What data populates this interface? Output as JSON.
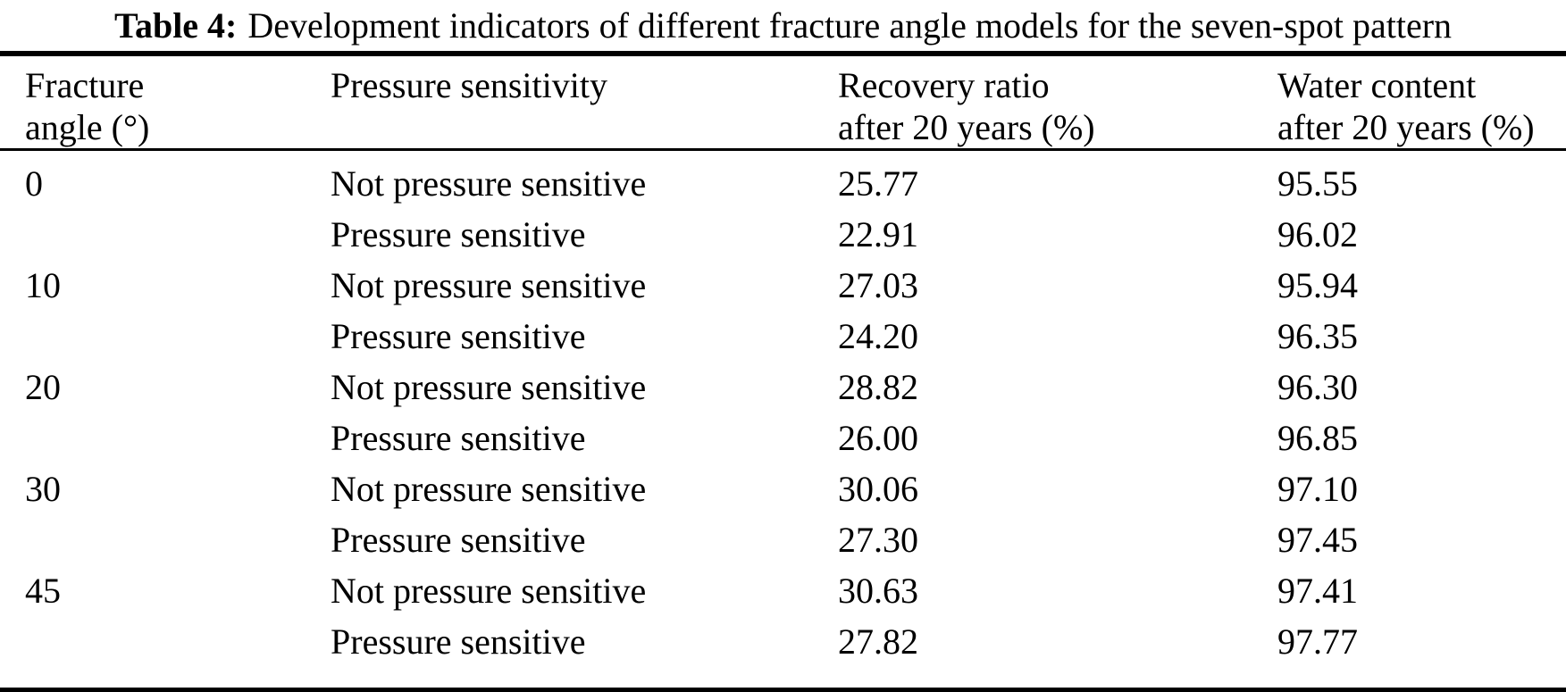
{
  "caption": {
    "label": "Table 4:",
    "text": "Development indicators of different fracture angle models for the seven-spot pattern"
  },
  "table": {
    "headers": {
      "angle": {
        "line1": "Fracture",
        "line2": "angle (°)"
      },
      "sensitivity": {
        "line1": "Pressure sensitivity",
        "line2": ""
      },
      "recovery": {
        "line1": "Recovery ratio",
        "line2": "after 20 years (%)"
      },
      "water": {
        "line1": "Water content",
        "line2": "after 20 years (%)"
      }
    },
    "rows": [
      {
        "angle": "0",
        "sensitivity": "Not pressure sensitive",
        "recovery": "25.77",
        "water": "95.55"
      },
      {
        "angle": "",
        "sensitivity": "Pressure sensitive",
        "recovery": "22.91",
        "water": "96.02"
      },
      {
        "angle": "10",
        "sensitivity": "Not pressure sensitive",
        "recovery": "27.03",
        "water": "95.94"
      },
      {
        "angle": "",
        "sensitivity": "Pressure sensitive",
        "recovery": "24.20",
        "water": "96.35"
      },
      {
        "angle": "20",
        "sensitivity": "Not pressure sensitive",
        "recovery": "28.82",
        "water": "96.30"
      },
      {
        "angle": "",
        "sensitivity": "Pressure sensitive",
        "recovery": "26.00",
        "water": "96.85"
      },
      {
        "angle": "30",
        "sensitivity": "Not pressure sensitive",
        "recovery": "30.06",
        "water": "97.10"
      },
      {
        "angle": "",
        "sensitivity": "Pressure sensitive",
        "recovery": "27.30",
        "water": "97.45"
      },
      {
        "angle": "45",
        "sensitivity": "Not pressure sensitive",
        "recovery": "30.63",
        "water": "97.41"
      },
      {
        "angle": "",
        "sensitivity": "Pressure sensitive",
        "recovery": "27.82",
        "water": "97.77"
      }
    ],
    "colors": {
      "text": "#000000",
      "background": "#ffffff",
      "rule": "#000000"
    }
  }
}
